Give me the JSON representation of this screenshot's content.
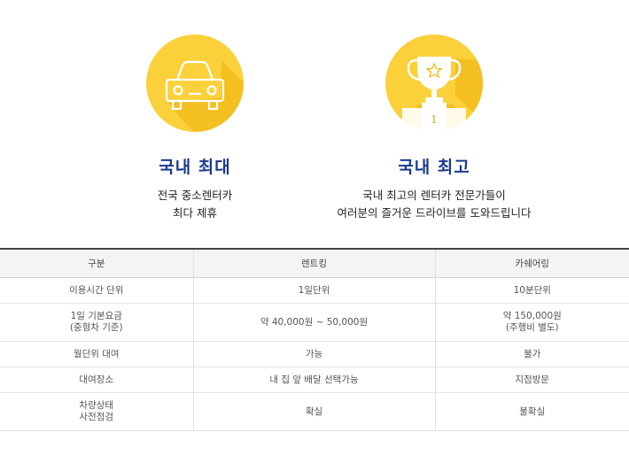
{
  "colors": {
    "circle": "#fbd13b",
    "circle_shadow": "#f2b81a",
    "title": "#1a3a8c"
  },
  "features": [
    {
      "icon": "car-icon",
      "title": "국내 최대",
      "desc": [
        "전국 중소렌터카",
        "최다 제휴"
      ]
    },
    {
      "icon": "trophy-icon",
      "title": "국내 최고",
      "desc": [
        "국내 최고의 렌터카 전문가들이",
        "여러분의 즐거운 드라이브를 도와드립니다"
      ],
      "badge": "1"
    }
  ],
  "table": {
    "headers": [
      "구분",
      "렌트킹",
      "카쉐어링"
    ],
    "rows": [
      {
        "label": [
          "이용시간 단위"
        ],
        "rent": [
          "1일단위"
        ],
        "share": [
          "10분단위"
        ]
      },
      {
        "label": [
          "1일 기본요금",
          "(중형차 기준)"
        ],
        "rent": [
          "약 40,000원 ~ 50,000원"
        ],
        "share": [
          "약 150,000원",
          "(주행비 별도)"
        ]
      },
      {
        "label": [
          "월단위 대여"
        ],
        "rent": [
          "가능"
        ],
        "share": [
          "불가"
        ]
      },
      {
        "label": [
          "대여장소"
        ],
        "rent": [
          "내 집 앞 배달 선택가능"
        ],
        "share": [
          "지점방문"
        ]
      },
      {
        "label": [
          "차량상태",
          "사전점검"
        ],
        "rent": [
          "확실"
        ],
        "share": [
          "불확실"
        ]
      }
    ]
  }
}
